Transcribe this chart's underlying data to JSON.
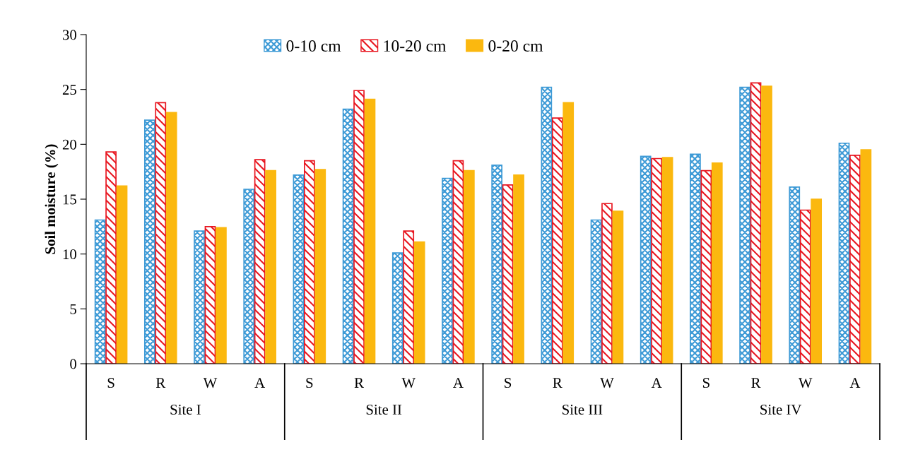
{
  "chart_data": {
    "type": "bar",
    "ylabel": "Soil moisture (%)",
    "categories": [
      "S",
      "R",
      "W",
      "A",
      "S",
      "R",
      "W",
      "A",
      "S",
      "R",
      "W",
      "A",
      "S",
      "R",
      "W",
      "A"
    ],
    "series": [
      {
        "name": "0-10 cm",
        "color": "#3d9ad6",
        "values": [
          13.1,
          22.2,
          12.1,
          15.9,
          17.2,
          23.2,
          10.1,
          16.9,
          18.1,
          25.2,
          13.1,
          18.9,
          19.1,
          25.2,
          16.1,
          20.1
        ]
      },
      {
        "name": "10-20 cm",
        "color": "#e8151f",
        "values": [
          19.3,
          23.8,
          12.5,
          18.6,
          18.5,
          24.9,
          12.1,
          18.5,
          16.3,
          22.4,
          14.6,
          18.7,
          17.6,
          25.6,
          14.0,
          19.0
        ]
      },
      {
        "name": "0-20 cm",
        "color": "#fbb80f",
        "values": [
          16.2,
          22.9,
          12.4,
          17.6,
          17.7,
          24.1,
          11.1,
          17.6,
          17.2,
          23.8,
          13.9,
          18.8,
          18.3,
          25.3,
          15.0,
          19.5
        ]
      }
    ],
    "annotations": [
      "Site I",
      "Site II",
      "Site III",
      "Site IV"
    ],
    "ylim": [
      0,
      30
    ],
    "yticks": [
      0,
      5,
      10,
      15,
      20,
      25,
      30
    ],
    "grid": false,
    "legend": "top"
  }
}
